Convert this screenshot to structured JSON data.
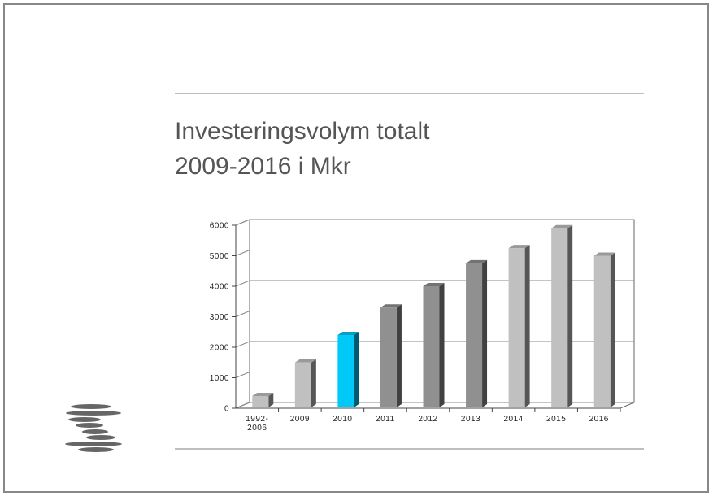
{
  "chart_data": {
    "type": "bar3d",
    "title": "Investeringsvolym totalt\n2009-2016 i Mkr",
    "categories": [
      "1992-2006",
      "2009",
      "2010",
      "2011",
      "2012",
      "2013",
      "2014",
      "2015",
      "2016"
    ],
    "values": [
      400,
      1500,
      2400,
      3300,
      4000,
      4750,
      5250,
      5900,
      5000
    ],
    "colors": [
      "#c0c0c0",
      "#c0c0c0",
      "#00c8f8",
      "#909090",
      "#909090",
      "#909090",
      "#c0c0c0",
      "#c0c0c0",
      "#c0c0c0"
    ],
    "ylim": [
      0,
      6000
    ],
    "yticks": [
      0,
      1000,
      2000,
      3000,
      4000,
      5000,
      6000
    ],
    "grid": true
  }
}
